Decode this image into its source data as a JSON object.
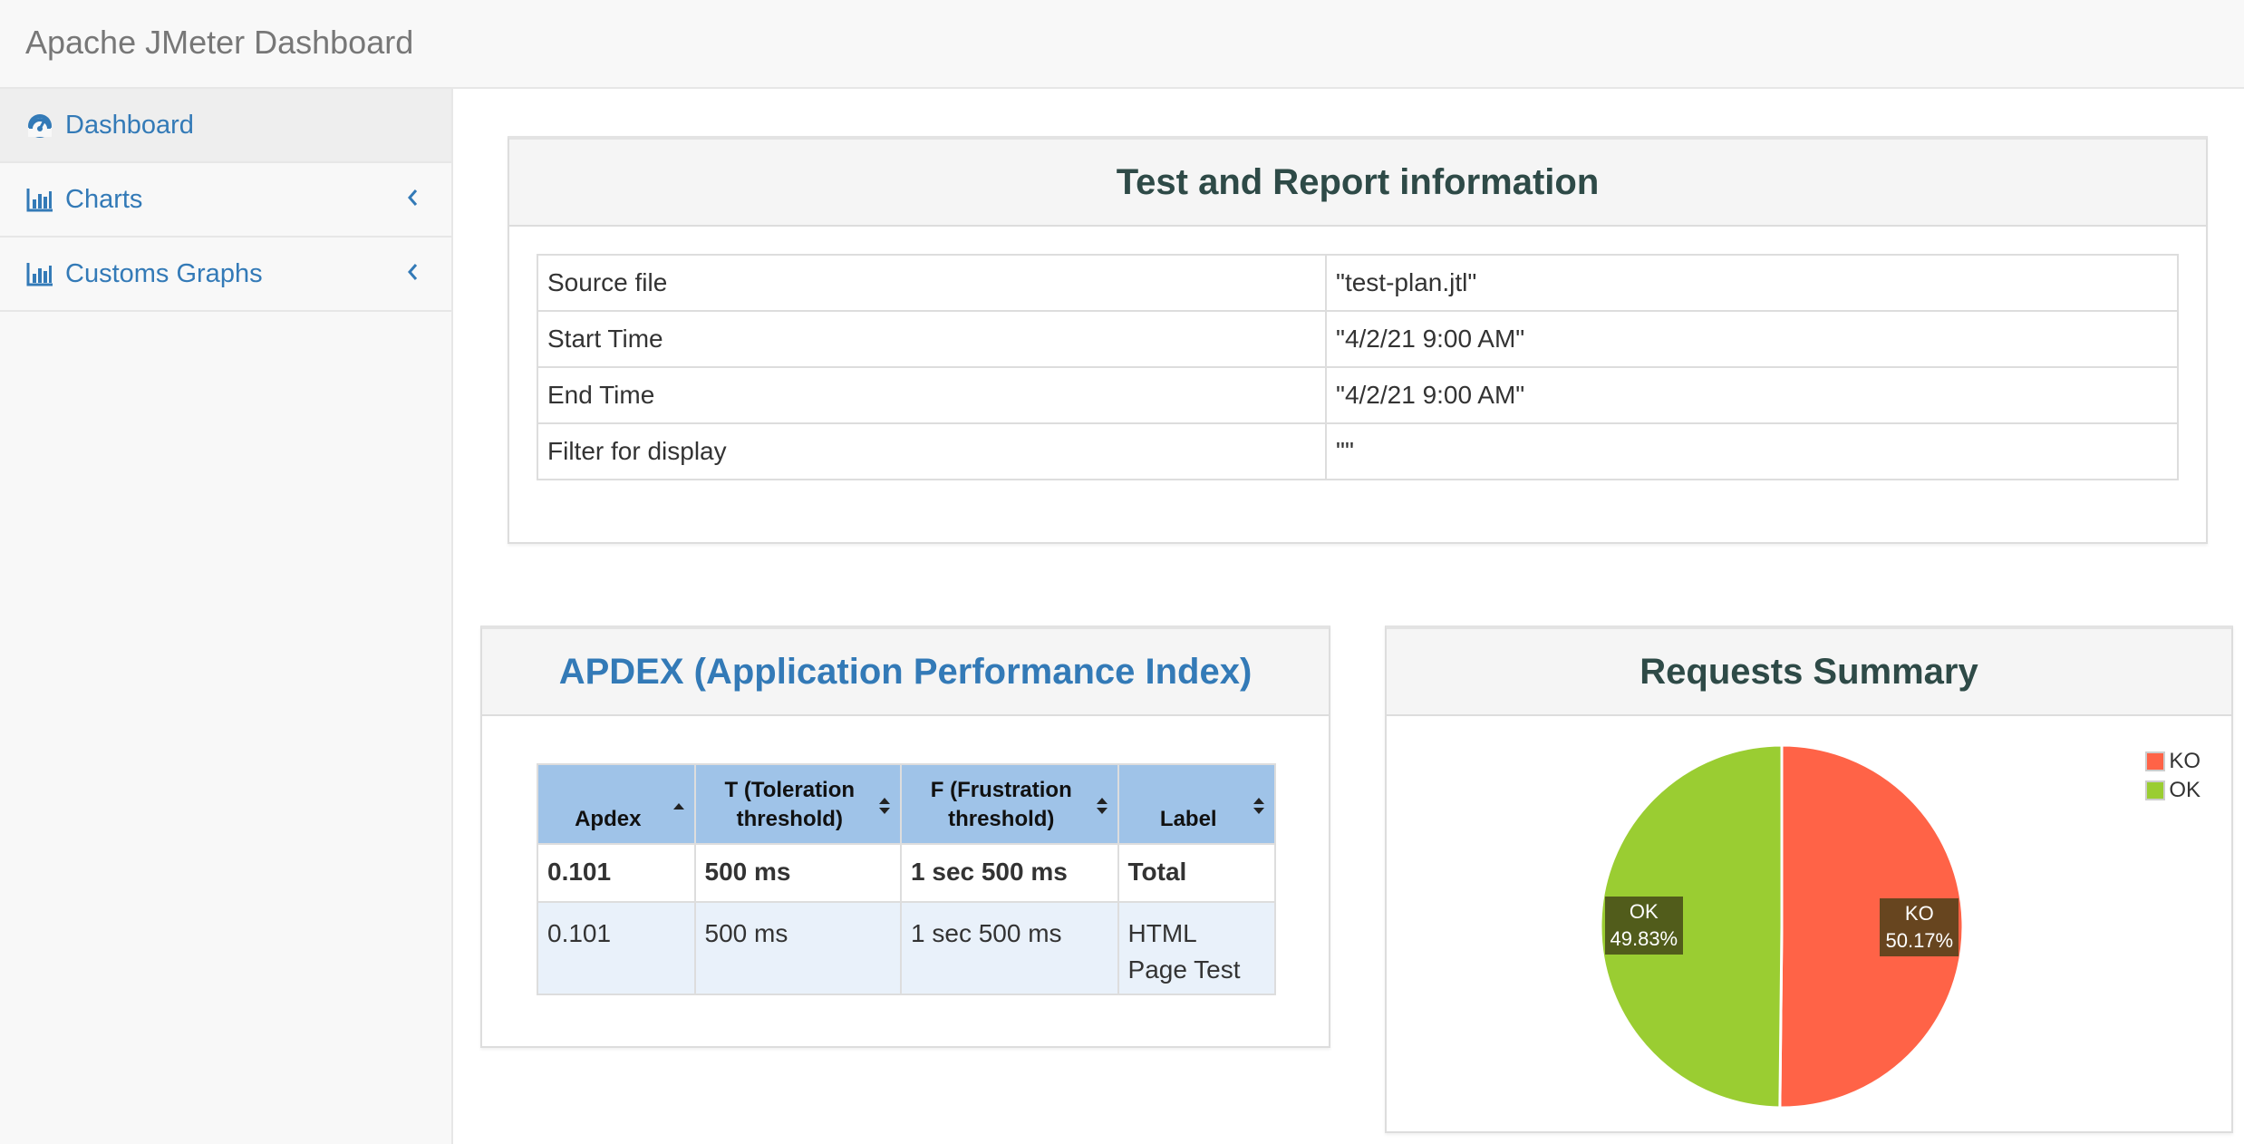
{
  "navbar": {
    "brand": "Apache JMeter Dashboard"
  },
  "sidebar": {
    "items": [
      {
        "label": "Dashboard",
        "icon": "dashboard-icon",
        "active": true
      },
      {
        "label": "Charts",
        "icon": "bar-chart-icon",
        "has_chevron": true
      },
      {
        "label": "Customs Graphs",
        "icon": "bar-chart-icon",
        "has_chevron": true
      }
    ]
  },
  "info_panel": {
    "title": "Test and Report information",
    "rows": [
      {
        "key": "Source file",
        "value": "\"test-plan.jtl\""
      },
      {
        "key": "Start Time",
        "value": "\"4/2/21 9:00 AM\""
      },
      {
        "key": "End Time",
        "value": "\"4/2/21 9:00 AM\""
      },
      {
        "key": "Filter for display",
        "value": "\"\""
      }
    ]
  },
  "apdex_panel": {
    "title": "APDEX (Application Performance Index)",
    "headers": {
      "apdex": "Apdex",
      "t_line1": "T (Toleration",
      "t_line2": "threshold)",
      "f_line1": "F (Frustration",
      "f_line2": "threshold)",
      "label": "Label"
    },
    "total": {
      "apdex": "0.101",
      "t": "500 ms",
      "f": "1 sec 500 ms",
      "label": "Total"
    },
    "rows": [
      {
        "apdex": "0.101",
        "t": "500 ms",
        "f": "1 sec 500 ms",
        "label_line1": "HTML",
        "label_line2": "Page Test"
      }
    ],
    "header_color": "#9fc3e8"
  },
  "summary_panel": {
    "title": "Requests Summary",
    "chart_data": {
      "type": "pie",
      "title": "Requests Summary",
      "slices": [
        {
          "name": "KO",
          "value": 50.17,
          "label_name": "KO",
          "label_value": "50.17%",
          "color": "#ff6347"
        },
        {
          "name": "OK",
          "value": 49.83,
          "label_name": "OK",
          "label_value": "49.83%",
          "color": "#9acd32"
        }
      ],
      "legend": {
        "placement": "top-right",
        "items": [
          "KO",
          "OK"
        ]
      }
    }
  }
}
